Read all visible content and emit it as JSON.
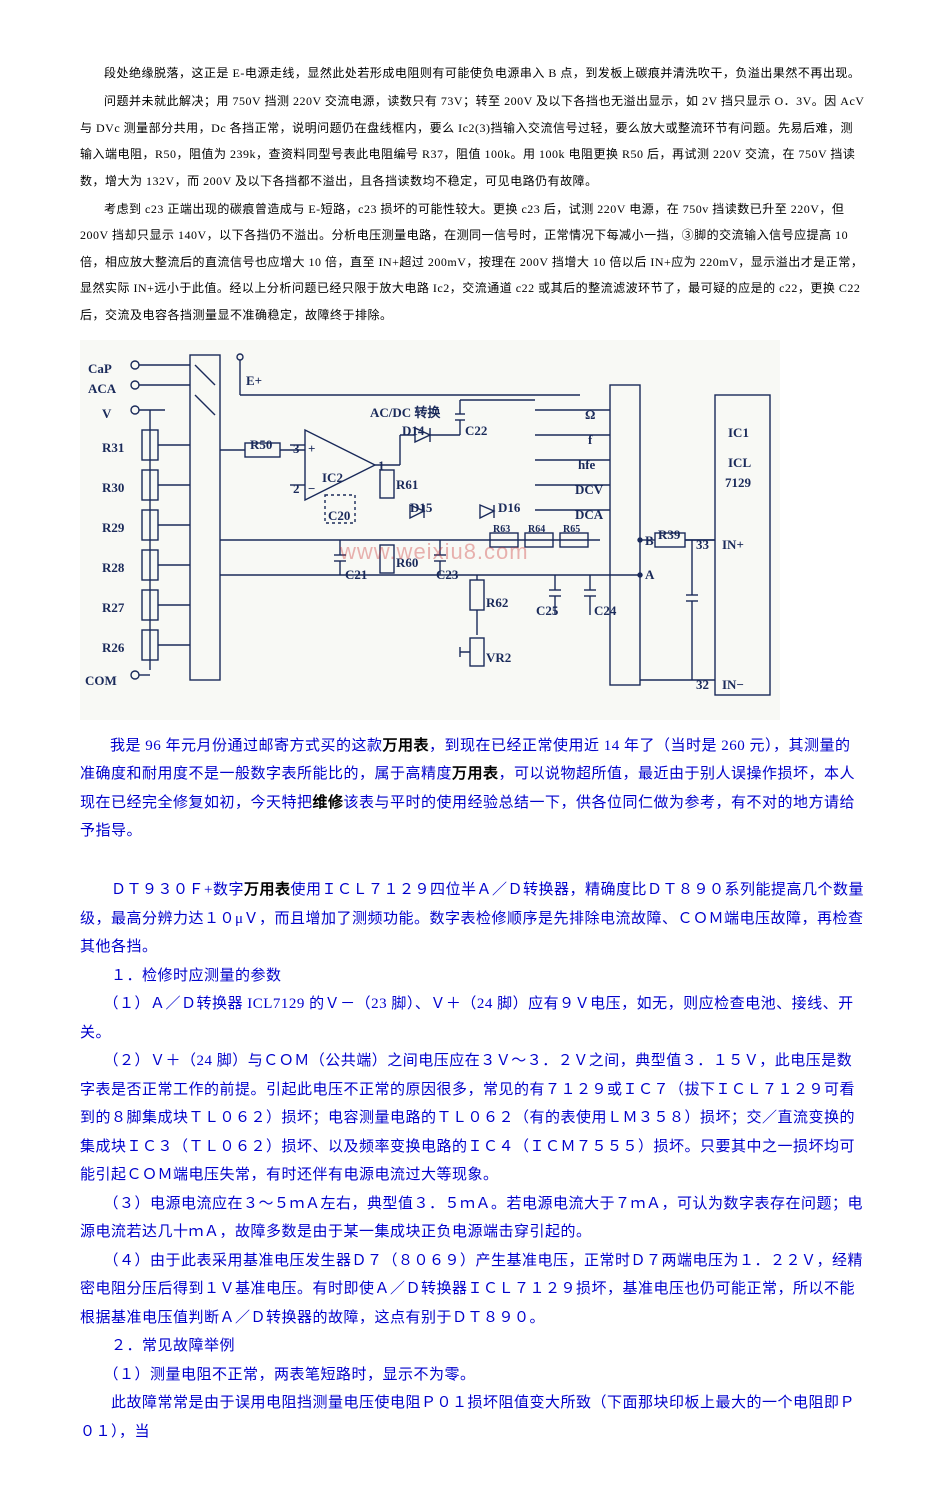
{
  "top_paragraphs": [
    "段处绝缘脱落，这正是 E-电源走线，显然此处若形成电阻则有可能使负电源串入 B 点，到发板上碳痕并清洗吹干，负溢出果然不再出现。",
    "问题并未就此解决；用 750V 挡测 220V 交流电源，读数只有 73V；转至 200V 及以下各挡也无溢出显示，如 2V 挡只显示 O．3V。因 AcV 与 DVc 测量部分共用，Dc 各挡正常，说明问题仍在盘线框内，要么 Ic2(3)挡输入交流信号过轻，要么放大或整流环节有问题。先易后难，测输入端电阻，R50，阻值为 239k，查资料同型号表此电阻编号 R37，阻值 100k。用 100k 电阻更换 R50 后，再试测 220V 交流，在 750V 挡读数，增大为 132V，而 200V 及以下各挡都不溢出，且各挡读数均不稳定，可见电路仍有故障。",
    "考虑到 c23 正端出现的碳痕曾造成与 E-短路，c23 损坏的可能性较大。更换 c23 后，试测 220V 电源，在 750v 挡读数已升至 220V，但 200V 挡却只显示 140V，以下各挡仍不溢出。分析电压测量电路，在测同一信号时，正常情况下每减小一挡，③脚的交流输入信号应提高 10 倍，相应放大整流后的直流信号也应增大 10 倍，直至 IN+超过 200mV，按理在 200V 挡增大 10 倍以后 IN+应为 220mV，显示溢出才是正常，显然实际 IN+远小于此值。经以上分析问题已经只限于放大电路 Ic2，交流通道 c22 或其后的整流滤波环节了，最可疑的应是的 c22，更换 C22 后，交流及电容各挡测量显不准确稳定，故障终于排除。"
  ],
  "intro_paragraph": {
    "prefix": "我是 96 年元月份通过邮寄方式买的这款",
    "kw1": "万用表",
    "mid1": "，到现在已经正常使用近 14 年了（当时是 260 元），其测量的准确度和耐用度不是一般数字表所能比的，属于高精度",
    "kw2": "万用表",
    "mid2": "，可以说物超所值，最近由于别人误操作损坏，本人现在已经完全修复如初，今天特把",
    "kw3": "维修",
    "suffix": "该表与平时的使用经验总结一下，供各位同仁做为参考，有不对的地方请给予指导。"
  },
  "blue_paragraphs": [
    "　　ＤＴ９３０Ｆ+数字|万用表|使用ＩＣＬ７１２９四位半Ａ／Ｄ转换器，精确度比ＤＴ８９０系列能提高几个数量级，最高分辨力达１０μＶ，而且增加了测频功能。数字表检修顺序是先排除电流故障、ＣＯＭ端电压故障，再检查其他各挡。",
    "　　１．检修时应测量的参数",
    "　　（１）Ａ／Ｄ转换器 ICL7129 的Ｖ－（23 脚）、Ｖ＋（24 脚）应有９Ｖ电压，如无，则应检查电池、接线、开关。",
    "　　（２）Ｖ＋（24 脚）与ＣＯＭ（公共端）之间电压应在３Ｖ～３．２Ｖ之间，典型值３．１５Ｖ，此电压是数字表是否正常工作的前提。引起此电压不正常的原因很多，常见的有７１２９或ＩＣ７（拔下ＩＣＬ７１２９可看到的８脚集成块ＴＬ０６２）损坏；电容测量电路的ＴＬ０６２（有的表使用ＬＭ３５８）损坏；交／直流变换的集成块ＩＣ３（ＴＬ０６２）损坏、以及频率变换电路的ＩＣ４（ＩＣＭ７５５５）损坏。只要其中之一损坏均可能引起ＣＯＭ端电压失常，有时还伴有电源电流过大等现象。",
    "　　（３）电源电流应在３～５ｍＡ左右，典型值３．５ｍＡ。若电源电流大于７ｍＡ，可认为数字表存在问题；电源电流若达几十ｍＡ，故障多数是由于某一集成块正负电源端击穿引起的。",
    "　　（４）由于此表采用基准电压发生器Ｄ７（８０６９）产生基准电压，正常时Ｄ７两端电压为１．２２Ｖ，经精密电阻分压后得到１Ｖ基准电压。有时即使Ａ／Ｄ转换器ＩＣＬ７１２９损坏，基准电压也仍可能正常，所以不能根据基准电压值判断Ａ／Ｄ转换器的故障，这点有别于ＤＴ８９０。",
    "　　２．常见故障举例",
    "　　（１）测量电阻不正常，两表笔短路时，显示不为零。",
    "　　此故障常常是由于误用电阻挡测量电压使电阻Ｐ０１损坏阻值变大所致（下面那块印板上最大的一个电阻即Ｐ０１），当"
  ],
  "diagram": {
    "terminals_left": [
      "CaP",
      "ACA",
      "V"
    ],
    "resistors_left": [
      "R31",
      "R30",
      "R29",
      "R28",
      "R27",
      "R26"
    ],
    "com_label": "COM",
    "top_labels": {
      "e_plus": "E+",
      "acdc": "AC/DC 转换"
    },
    "right_labels": [
      "Ω",
      "f",
      "hfe",
      "DCV",
      "DCA"
    ],
    "ic1": {
      "line1": "IC1",
      "line2": "ICL",
      "line3": "7129"
    },
    "components": {
      "R50": "R50",
      "IC2": "IC2",
      "D14": "D14",
      "C22": "C22",
      "C20": "C20",
      "C21": "C21",
      "R61": "R61",
      "D15": "D15",
      "D16": "D16",
      "R60": "R60",
      "R62": "R62",
      "R63": "R63",
      "R64": "R64",
      "R65": "R65",
      "C23": "C23",
      "C24": "C24",
      "C25": "C25",
      "VR2": "VR2",
      "R39": "R39",
      "pin33": "33",
      "pin32": "32",
      "A": "A",
      "B": "B",
      "INplus": "IN+",
      "INminus": "IN−",
      "plus": "+",
      "minus": "−",
      "three": "3",
      "two": "2",
      "one": "1"
    },
    "watermark": "www.weixiu8.com",
    "colors": {
      "line": "#1a2a5a",
      "bg": "#f6f7f4"
    }
  }
}
